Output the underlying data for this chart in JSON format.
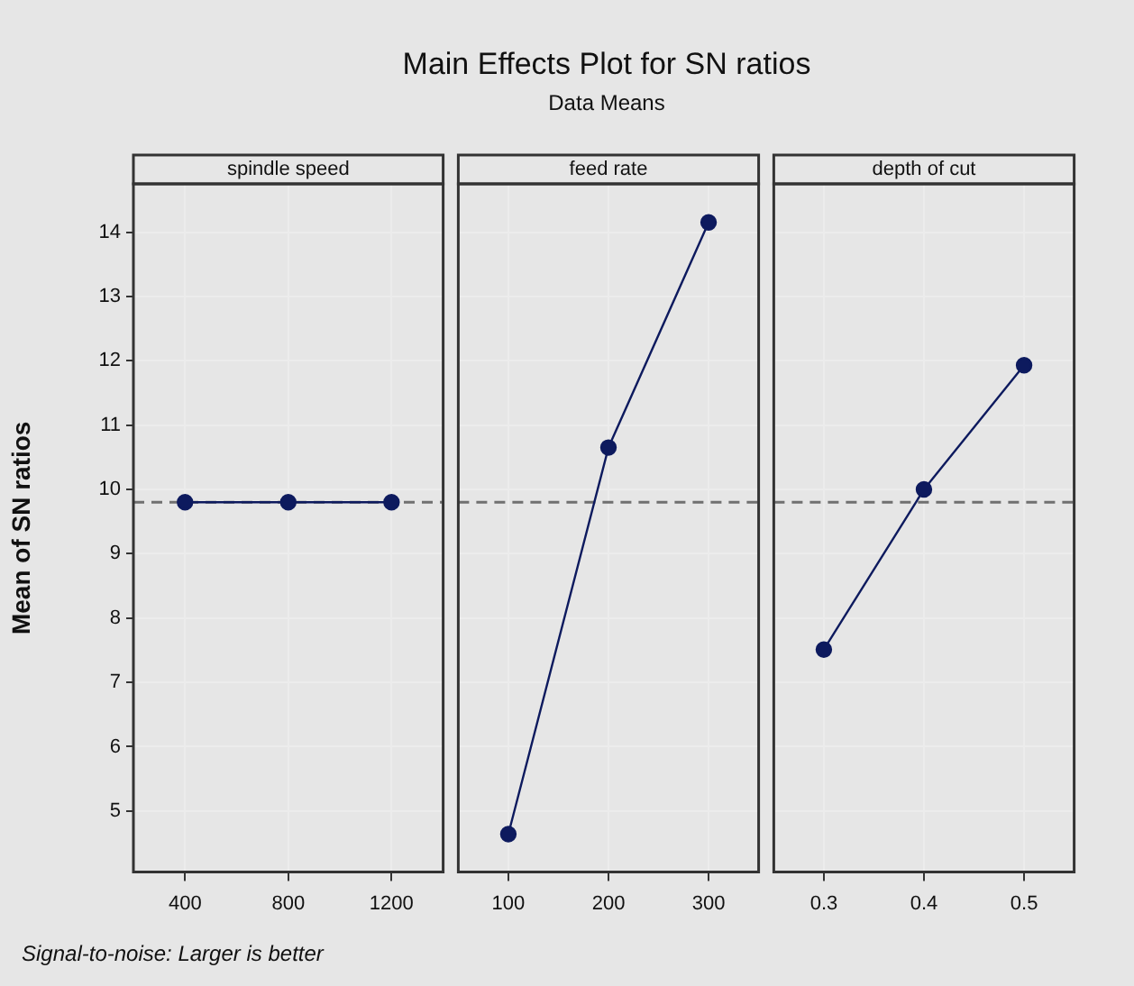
{
  "chart_data": [
    {
      "type": "line",
      "xlabel": "spindle speed",
      "ylabel": "Mean of SN ratios",
      "categories": [
        "400",
        "800",
        "1200"
      ],
      "series": [
        {
          "color": "#0d1a5e",
          "values": [
            9.8,
            9.8,
            9.8
          ]
        }
      ],
      "ylim": [
        4.05,
        14.75
      ],
      "yticks": [
        5,
        6,
        7,
        8,
        9,
        10,
        11,
        12,
        13,
        14
      ],
      "grid": true,
      "marker": "circle",
      "line_style": "solid",
      "ref_lines": [
        {
          "axis": "y",
          "value": 9.8,
          "line_style": "dashed",
          "color": "#707070"
        }
      ],
      "annotations": [
        "Signal-to-noise: Larger is better"
      ]
    },
    {
      "type": "line",
      "title": "Main Effects Plot for SN ratios",
      "subtitle": "Data Means",
      "xlabel": "feed rate",
      "categories": [
        "100",
        "200",
        "300"
      ],
      "series": [
        {
          "color": "#0d1a5e",
          "values": [
            4.64,
            10.65,
            14.15
          ]
        }
      ],
      "ylim": [
        4.05,
        14.75
      ],
      "yticks": [
        5,
        6,
        7,
        8,
        9,
        10,
        11,
        12,
        13,
        14
      ],
      "tick_labels": "x",
      "grid": true,
      "marker": "circle",
      "line_style": "solid",
      "ref_lines": [
        {
          "axis": "y",
          "value": 9.8,
          "line_style": "dashed",
          "color": "#707070"
        }
      ]
    },
    {
      "type": "line",
      "xlabel": "depth of cut",
      "categories": [
        "0.3",
        "0.4",
        "0.5"
      ],
      "series": [
        {
          "color": "#0d1a5e",
          "values": [
            7.51,
            10.0,
            11.93
          ]
        }
      ],
      "ylim": [
        4.05,
        14.75
      ],
      "yticks": [
        5,
        6,
        7,
        8,
        9,
        10,
        11,
        12,
        13,
        14
      ],
      "tick_labels": "x",
      "grid": true,
      "marker": "circle",
      "line_style": "solid",
      "ref_lines": [
        {
          "axis": "y",
          "value": 9.8,
          "line_style": "dashed",
          "color": "#707070"
        }
      ]
    }
  ]
}
